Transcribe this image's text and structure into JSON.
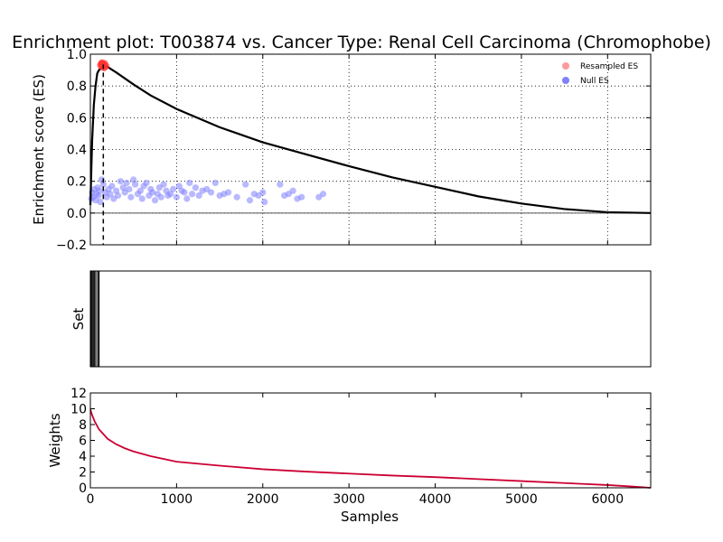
{
  "chart_data": [
    {
      "type": "line",
      "title": "Enrichment plot: T003874 vs. Cancer Type: Renal Cell Carcinoma (Chromophobe)",
      "ylabel": "Enrichment score (ES)",
      "xlim": [
        0,
        6500
      ],
      "ylim": [
        -0.2,
        1.0
      ],
      "yticks": [
        "1.0",
        "0.8",
        "0.6",
        "0.4",
        "0.2",
        "0.0",
        "−0.2"
      ],
      "grid": true,
      "legend_position": "top-right",
      "legend": [
        {
          "label": "Resampled ES",
          "color": "#ff9a9a"
        },
        {
          "label": "Null ES",
          "color": "#8080ff"
        }
      ],
      "max_es_position": 150,
      "series": [
        {
          "color": "#000000",
          "x": [
            0,
            20,
            40,
            60,
            80,
            100,
            120,
            150,
            200,
            300,
            500,
            700,
            1000,
            1500,
            2000,
            2500,
            3000,
            3500,
            4000,
            4500,
            5000,
            5500,
            6000,
            6500
          ],
          "y": [
            0.05,
            0.45,
            0.68,
            0.8,
            0.88,
            0.9,
            0.91,
            0.935,
            0.92,
            0.885,
            0.81,
            0.74,
            0.655,
            0.54,
            0.445,
            0.37,
            0.295,
            0.225,
            0.165,
            0.105,
            0.06,
            0.025,
            0.005,
            0.0
          ]
        }
      ],
      "resampled_es": {
        "x": [
          120,
          135,
          150,
          165,
          180,
          140,
          160,
          128
        ],
        "y": [
          0.93,
          0.945,
          0.935,
          0.94,
          0.925,
          0.92,
          0.915,
          0.94
        ]
      },
      "null_es": {
        "x": [
          10,
          20,
          30,
          45,
          60,
          70,
          85,
          95,
          105,
          115,
          130,
          150,
          170,
          190,
          210,
          230,
          250,
          270,
          300,
          320,
          350,
          380,
          400,
          420,
          450,
          470,
          500,
          520,
          550,
          580,
          600,
          620,
          650,
          680,
          700,
          720,
          750,
          780,
          800,
          820,
          850,
          880,
          900,
          930,
          960,
          1000,
          1030,
          1060,
          1090,
          1120,
          1150,
          1180,
          1220,
          1260,
          1300,
          1350,
          1400,
          1450,
          1500,
          1550,
          1600,
          1700,
          1800,
          1850,
          1900,
          1950,
          2000,
          2020,
          2200,
          2250,
          2300,
          2350,
          2400,
          2450,
          2650,
          2700
        ],
        "y": [
          0.09,
          0.13,
          0.1,
          0.15,
          0.08,
          0.12,
          0.16,
          0.11,
          0.14,
          0.07,
          0.21,
          0.18,
          0.13,
          0.1,
          0.15,
          0.12,
          0.17,
          0.09,
          0.14,
          0.11,
          0.2,
          0.16,
          0.13,
          0.19,
          0.15,
          0.1,
          0.21,
          0.18,
          0.12,
          0.14,
          0.09,
          0.17,
          0.19,
          0.11,
          0.15,
          0.13,
          0.08,
          0.12,
          0.16,
          0.1,
          0.18,
          0.14,
          0.11,
          0.12,
          0.15,
          0.1,
          0.17,
          0.14,
          0.13,
          0.09,
          0.19,
          0.12,
          0.16,
          0.11,
          0.14,
          0.15,
          0.13,
          0.19,
          0.11,
          0.12,
          0.13,
          0.1,
          0.18,
          0.08,
          0.12,
          0.11,
          0.13,
          0.07,
          0.18,
          0.11,
          0.12,
          0.14,
          0.09,
          0.1,
          0.1,
          0.12
        ]
      }
    },
    {
      "type": "line",
      "ylabel": "Set",
      "xlim": [
        0,
        6500
      ],
      "hits": [
        5,
        18,
        32,
        45,
        62,
        85,
        100
      ]
    },
    {
      "type": "line",
      "xlabel": "Samples",
      "ylabel": "Weights",
      "xlim": [
        0,
        6500
      ],
      "ylim": [
        0,
        12
      ],
      "xticks": [
        "0",
        "1000",
        "2000",
        "3000",
        "4000",
        "5000",
        "6000"
      ],
      "yticks": [
        "12",
        "10",
        "8",
        "6",
        "4",
        "2",
        "0"
      ],
      "series": [
        {
          "color": "#cc0033",
          "x": [
            0,
            20,
            50,
            100,
            200,
            300,
            400,
            500,
            700,
            1000,
            1500,
            2000,
            2500,
            3000,
            3500,
            4000,
            4500,
            5000,
            5500,
            6000,
            6300,
            6500
          ],
          "y": [
            9.9,
            9.2,
            8.4,
            7.4,
            6.2,
            5.5,
            5.0,
            4.6,
            4.0,
            3.3,
            2.8,
            2.35,
            2.05,
            1.8,
            1.55,
            1.35,
            1.1,
            0.85,
            0.6,
            0.35,
            0.15,
            0.0
          ]
        }
      ]
    }
  ]
}
